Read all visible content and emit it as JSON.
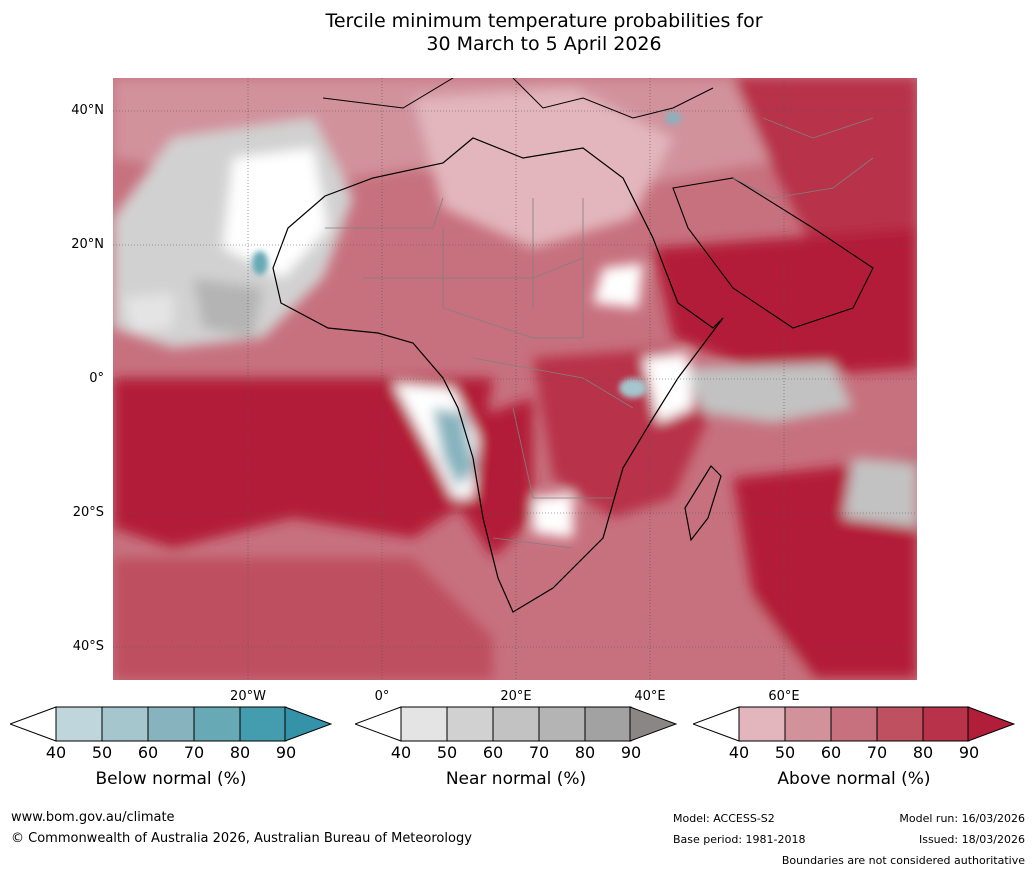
{
  "title": {
    "line1": "Tercile minimum temperature probabilities for",
    "line2": "30 March to 5 April 2026"
  },
  "map": {
    "lat_labels": [
      "40°N",
      "20°N",
      "0°",
      "20°S",
      "40°S"
    ],
    "lon_labels": [
      "20°W",
      "0°",
      "20°E",
      "40°E",
      "60°E"
    ],
    "below_color": "#3f9fb3",
    "near_color": "#8c8a8a",
    "above_color": "#b31c38"
  },
  "colorbars": {
    "ticks": [
      "40",
      "50",
      "60",
      "70",
      "80",
      "90"
    ],
    "below": {
      "label": "Below normal (%)",
      "colors": [
        "#bfd6dd",
        "#a5c6cd",
        "#86b3be",
        "#68a9b6",
        "#449dae",
        "#3493a8"
      ]
    },
    "near": {
      "label": "Near normal (%)",
      "colors": [
        "#e4e4e4",
        "#d1d1d1",
        "#c2c2c2",
        "#b4b4b4",
        "#a2a2a2",
        "#8a8686"
      ]
    },
    "above": {
      "label": "Above normal (%)",
      "colors": [
        "#e2b6bc",
        "#d1929c",
        "#c7717e",
        "#be5060",
        "#b8334a",
        "#b11e3a"
      ]
    }
  },
  "footer": {
    "website": "www.bom.gov.au/climate",
    "copyright": "© Commonwealth of Australia 2026, Australian Bureau of Meteorology",
    "model": "Model: ACCESS-S2",
    "base_period": "Base period: 1981-2018",
    "model_run": "Model run: 16/03/2026",
    "issued": "Issued: 18/03/2026",
    "disclaimer": "Boundaries are not considered authoritative"
  }
}
